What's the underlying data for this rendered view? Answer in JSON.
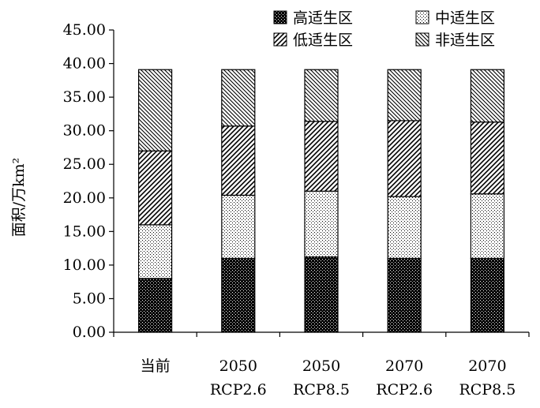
{
  "chart_data": {
    "type": "bar",
    "stacked": true,
    "categories": [
      [
        "当前",
        ""
      ],
      [
        "2050",
        "RCP2.6"
      ],
      [
        "2050",
        "RCP8.5"
      ],
      [
        "2070",
        "RCP2.6"
      ],
      [
        "2070",
        "RCP8.5"
      ]
    ],
    "series": [
      {
        "name": "高适生区",
        "pattern": "dots-dense",
        "values": [
          8.0,
          11.0,
          11.2,
          11.0,
          11.0
        ]
      },
      {
        "name": "中适生区",
        "pattern": "dots-sparse",
        "values": [
          8.0,
          9.4,
          9.8,
          9.2,
          9.6
        ]
      },
      {
        "name": "低适生区",
        "pattern": "diagonal-forward",
        "values": [
          11.0,
          10.3,
          10.4,
          11.3,
          10.7
        ]
      },
      {
        "name": "非适生区",
        "pattern": "diagonal-back",
        "values": [
          12.1,
          8.4,
          7.7,
          7.6,
          7.8
        ]
      }
    ],
    "ylabel": "面积/万km²",
    "xlabel": "",
    "title": "",
    "ylim": [
      0,
      45
    ],
    "yticks": [
      "0.00",
      "5.00",
      "10.00",
      "15.00",
      "20.00",
      "25.00",
      "30.00",
      "35.00",
      "40.00",
      "45.00"
    ],
    "grid": false,
    "legend_position": "top"
  },
  "colors": {
    "bar_fill": "#000000",
    "background": "#ffffff"
  }
}
